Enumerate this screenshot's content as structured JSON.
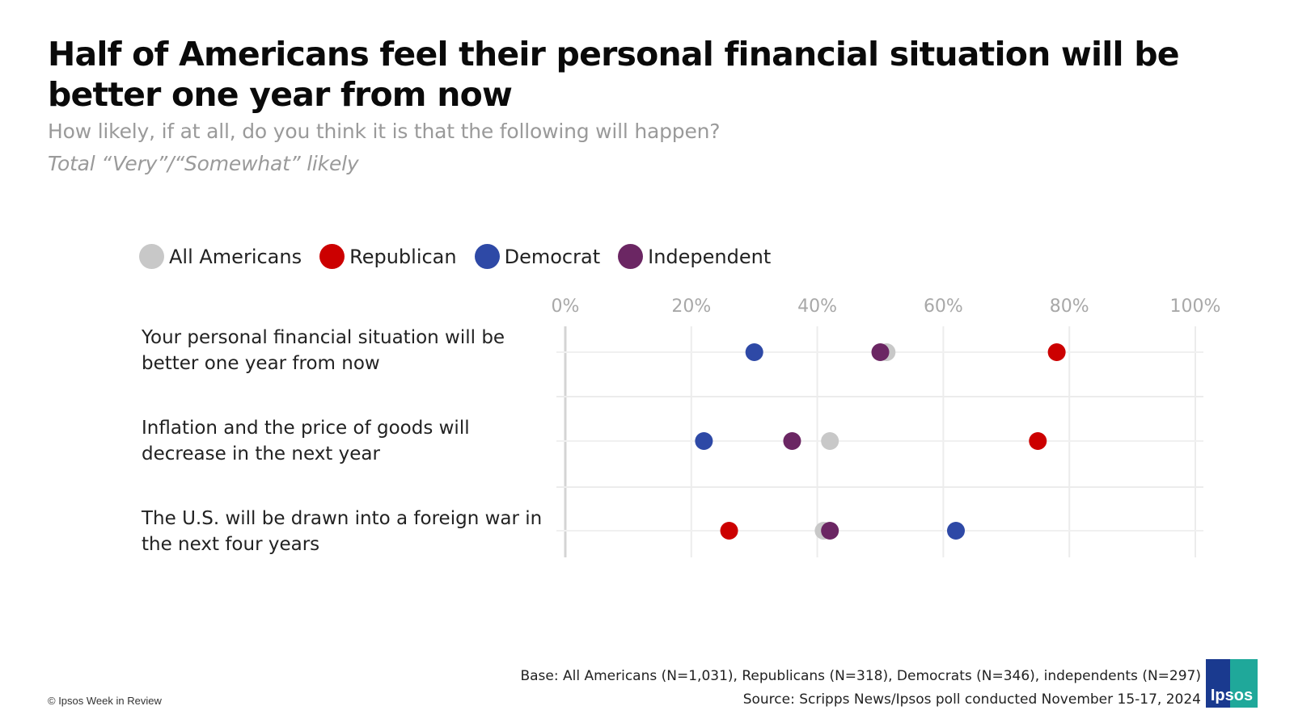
{
  "title": "Half of Americans feel their personal financial situation will be better one year from now",
  "subtitle": "How likely, if at all, do you think it is that the following will happen?",
  "subtitle2": "Total “Very”/“Somewhat” likely",
  "legend": [
    {
      "name": "All Americans",
      "color": "#c8c8c8"
    },
    {
      "name": "Republican",
      "color": "#cc0000"
    },
    {
      "name": "Democrat",
      "color": "#2e49a6"
    },
    {
      "name": "Independent",
      "color": "#6b2663"
    }
  ],
  "chart_data": {
    "type": "scatter",
    "categories": [
      "Your personal financial situation will be better one year from now",
      "Inflation and the price of goods will decrease in the next year",
      "The U.S. will be drawn into a foreign war in the next four years"
    ],
    "series": [
      {
        "name": "All Americans",
        "values": [
          51,
          42,
          41
        ]
      },
      {
        "name": "Republican",
        "values": [
          78,
          75,
          26
        ]
      },
      {
        "name": "Democrat",
        "values": [
          30,
          22,
          62
        ]
      },
      {
        "name": "Independent",
        "values": [
          50,
          36,
          42
        ]
      }
    ],
    "xlim": [
      0,
      100
    ],
    "xticks": [
      "0%",
      "20%",
      "40%",
      "60%",
      "80%",
      "100%"
    ],
    "grid": true,
    "legend_position": "top"
  },
  "footer": {
    "base": "Base: All Americans (N=1,031), Republicans (N=318), Democrats (N=346), independents (N=297)",
    "source": "Source: Scripps News/Ipsos poll conducted November 15-17, 2024"
  },
  "copyright": "© Ipsos Week in Review",
  "logo_text": "Ipsos"
}
